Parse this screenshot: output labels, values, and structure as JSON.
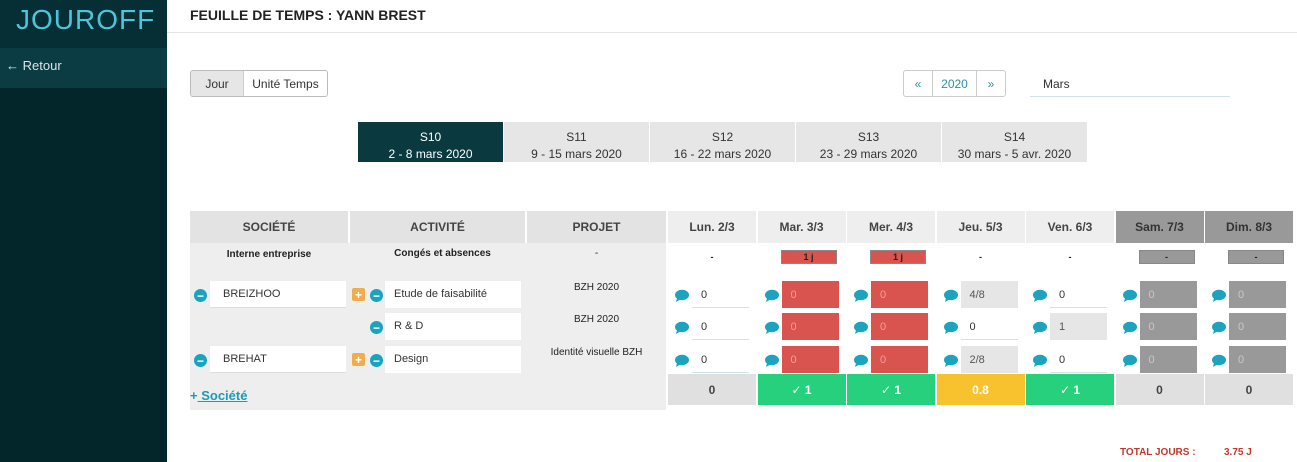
{
  "sidebar": {
    "logo": "JOUROFF",
    "back": "Retour"
  },
  "header": {
    "title": "FEUILLE DE TEMPS : YANN BREST"
  },
  "toggle": [
    "Jour",
    "Unité Temps"
  ],
  "year": "2020",
  "month": "Mars",
  "weeks": [
    {
      "label": "S10",
      "range": "2 - 8 mars 2020"
    },
    {
      "label": "S11",
      "range": "9 - 15 mars 2020"
    },
    {
      "label": "S12",
      "range": "16 - 22 mars 2020"
    },
    {
      "label": "S13",
      "range": "23 - 29 mars 2020"
    },
    {
      "label": "S14",
      "range": "30 mars - 5 avr. 2020"
    }
  ],
  "table": {
    "headers": [
      "SOCIÉTÉ",
      "ACTIVITÉ",
      "PROJET"
    ],
    "days": [
      "Lun. 2/3",
      "Mar. 3/3",
      "Mer. 4/3",
      "Jeu. 5/3",
      "Ven. 6/3",
      "Sam. 7/3",
      "Dim. 8/3"
    ],
    "absence": {
      "company": "Interne entreprise",
      "activity": "Congés et absences",
      "project": "-",
      "days": [
        "-",
        "1 j",
        "1 j",
        "-",
        "-",
        "-",
        "-"
      ],
      "colors": [
        null,
        "#d9534f",
        "#d9534f",
        null,
        null,
        "#999999",
        "#999999"
      ]
    },
    "rows": [
      {
        "company": "BREIZHOO",
        "activity": "Etude de faisabilité",
        "project": "BZH 2020",
        "values": [
          "0",
          "0",
          "0",
          "4/8",
          "0",
          "0",
          "0"
        ],
        "colors": [
          "#ffffff",
          "#d9534f",
          "#d9534f",
          "#e6e6e6",
          "#ffffff",
          "#999999",
          "#999999"
        ]
      },
      {
        "company": null,
        "activity": "R & D",
        "project": "BZH 2020",
        "values": [
          "0",
          "0",
          "0",
          "0",
          "1",
          "0",
          "0"
        ],
        "colors": [
          "#ffffff",
          "#d9534f",
          "#d9534f",
          "#ffffff",
          "#e6e6e6",
          "#999999",
          "#999999"
        ]
      },
      {
        "company": "BREHAT",
        "activity": "Design",
        "project": "Identité visuelle BZH",
        "values": [
          "0",
          "0",
          "0",
          "2/8",
          "0",
          "0",
          "0"
        ],
        "colors": [
          "#ffffff",
          "#d9534f",
          "#d9534f",
          "#e6e6e6",
          "#ffffff",
          "#999999",
          "#999999"
        ]
      }
    ],
    "totals": [
      "0",
      "1",
      "1",
      "0.8",
      "1",
      "0",
      "0"
    ],
    "totals_colors": [
      "#e0e0e0",
      "#26d07c",
      "#26d07c",
      "#f7c22e",
      "#26d07c",
      "#e0e0e0",
      "#e0e0e0"
    ]
  },
  "add_company": "Société",
  "total": {
    "label": "TOTAL JOURS :",
    "value": "3.75 J"
  }
}
